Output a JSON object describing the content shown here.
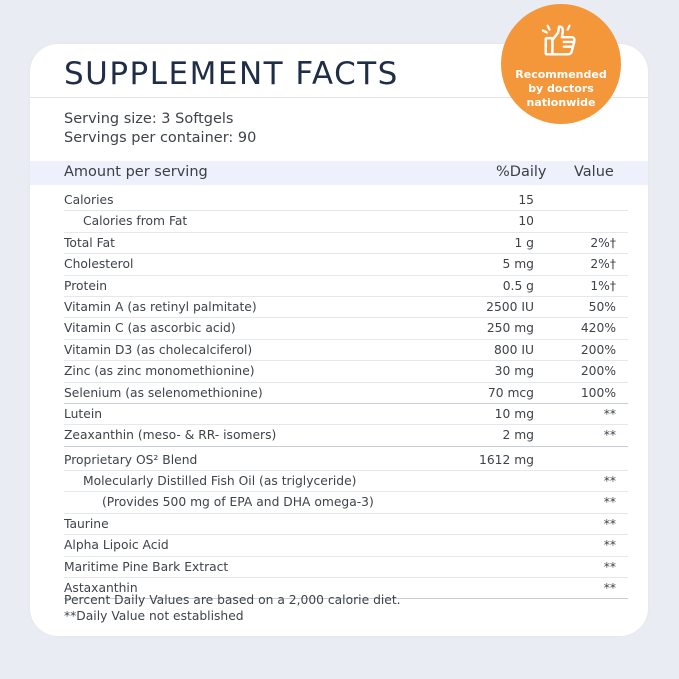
{
  "badge": {
    "line1": "Recommended",
    "line2": "by doctors",
    "line3": "nationwide",
    "icon": "thumbs-up-icon",
    "color": "#f4963a"
  },
  "title": "SUPPLEMENT FACTS",
  "serving_size": "Serving size: 3 Softgels",
  "servings_per_container": "Servings per container: 90",
  "header": {
    "amount": "Amount per serving",
    "daily": "%Daily",
    "value": "Value"
  },
  "rows": [
    {
      "label": "Calories",
      "amount": "15",
      "value": ""
    },
    {
      "label": "Calories from Fat",
      "amount": "10",
      "value": ""
    },
    {
      "label": "Total Fat",
      "amount": "1 g",
      "value": "2%†"
    },
    {
      "label": "Cholesterol",
      "amount": "5 mg",
      "value": "2%†"
    },
    {
      "label": "Protein",
      "amount": "0.5 g",
      "value": "1%†"
    },
    {
      "label": "Vitamin A (as retinyl palmitate)",
      "amount": "2500 IU",
      "value": "50%"
    },
    {
      "label": "Vitamin C (as ascorbic acid)",
      "amount": "250 mg",
      "value": "420%"
    },
    {
      "label": "Vitamin D3 (as cholecalciferol)",
      "amount": "800 IU",
      "value": "200%"
    },
    {
      "label": "Zinc (as zinc monomethionine)",
      "amount": "30 mg",
      "value": "200%"
    },
    {
      "label": "Selenium (as selenomethionine)",
      "amount": "70 mcg",
      "value": "100%"
    },
    {
      "label": "Lutein",
      "amount": "10 mg",
      "value": "**"
    },
    {
      "label": "Zeaxanthin (meso- & RR- isomers)",
      "amount": "2 mg",
      "value": "**"
    },
    {
      "label": "Proprietary OS² Blend",
      "amount": "1612 mg",
      "value": ""
    },
    {
      "label": "Molecularly Distilled Fish Oil (as triglyceride)",
      "amount": "",
      "value": "**"
    },
    {
      "label": "(Provides 500 mg of EPA and DHA omega-3)",
      "amount": "",
      "value": "**"
    },
    {
      "label": "Taurine",
      "amount": "",
      "value": "**"
    },
    {
      "label": "Alpha Lipoic Acid",
      "amount": "",
      "value": "**"
    },
    {
      "label": "Maritime Pine Bark Extract",
      "amount": "",
      "value": "**"
    },
    {
      "label": "Astaxanthin",
      "amount": "",
      "value": "**"
    }
  ],
  "footnote1": "Percent Daily Values are based on a 2,000 calorie diet.",
  "footnote2": "**Daily Value not established"
}
